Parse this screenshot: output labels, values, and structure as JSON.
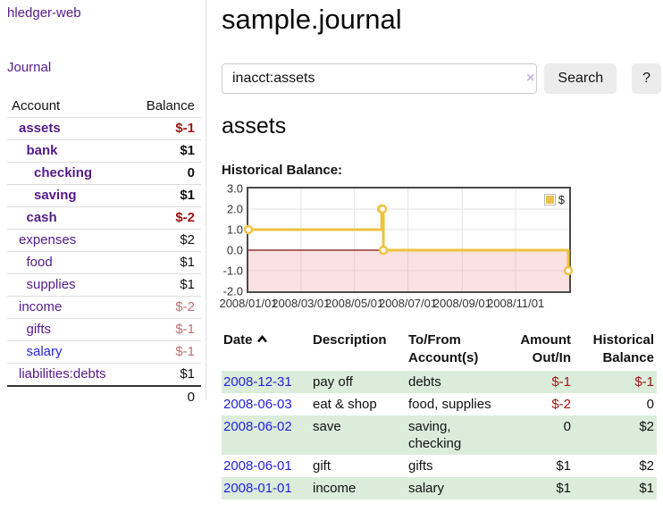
{
  "app": {
    "brand": "hledger-web",
    "journal_link": "Journal"
  },
  "sidebar": {
    "header": {
      "account": "Account",
      "balance": "Balance"
    },
    "accounts": [
      {
        "name": "assets",
        "indent": 0,
        "balance": "$-1",
        "bold": true,
        "bal_class": "neg-strong"
      },
      {
        "name": "bank",
        "indent": 1,
        "balance": "$1",
        "bold": true,
        "bal_class": "pos-strong"
      },
      {
        "name": "checking",
        "indent": 2,
        "balance": "0",
        "bold": true,
        "bal_class": "pos-strong"
      },
      {
        "name": "saving",
        "indent": 2,
        "balance": "$1",
        "bold": true,
        "bal_class": "pos-strong"
      },
      {
        "name": "cash",
        "indent": 1,
        "balance": "$-2",
        "bold": true,
        "bal_class": "neg-strong"
      },
      {
        "name": "expenses",
        "indent": 0,
        "balance": "$2",
        "bold": false,
        "bal_class": "pos"
      },
      {
        "name": "food",
        "indent": 1,
        "balance": "$1",
        "bold": false,
        "bal_class": "pos"
      },
      {
        "name": "supplies",
        "indent": 1,
        "balance": "$1",
        "bold": false,
        "bal_class": "pos"
      },
      {
        "name": "income",
        "indent": 0,
        "balance": "$-2",
        "bold": false,
        "bal_class": "neg"
      },
      {
        "name": "gifts",
        "indent": 1,
        "balance": "$-1",
        "bold": false,
        "bal_class": "neg"
      },
      {
        "name": "salary",
        "indent": 1,
        "balance": "$-1",
        "bold": false,
        "bal_class": "neg",
        "link_class": "blue"
      },
      {
        "name": "liabilities:debts",
        "indent": 0,
        "balance": "$1",
        "bold": false,
        "bal_class": "pos"
      }
    ],
    "total": "0"
  },
  "header": {
    "title": "sample.journal"
  },
  "search": {
    "query": "inacct:assets",
    "clear_icon": "×",
    "button_label": "Search",
    "help_label": "?"
  },
  "register": {
    "account_heading": "assets",
    "chart_title": "Historical Balance:",
    "table": {
      "headers": [
        {
          "label": "Date",
          "sortable": true
        },
        {
          "label": "Description"
        },
        {
          "label": "To/From Account(s)"
        },
        {
          "label": "Amount Out/In",
          "align": "right"
        },
        {
          "label": "Historical Balance",
          "align": "right"
        }
      ],
      "rows": [
        {
          "date": "2008-12-31",
          "description": "pay off",
          "accounts": "debts",
          "amount": "$-1",
          "amount_neg": true,
          "balance": "$-1",
          "balance_neg": true
        },
        {
          "date": "2008-06-03",
          "description": "eat & shop",
          "accounts": "food, supplies",
          "amount": "$-2",
          "amount_neg": true,
          "balance": "0",
          "balance_neg": false
        },
        {
          "date": "2008-06-02",
          "description": "save",
          "accounts": "saving, checking",
          "amount": "0",
          "amount_neg": false,
          "balance": "$2",
          "balance_neg": false
        },
        {
          "date": "2008-06-01",
          "description": "gift",
          "accounts": "gifts",
          "amount": "$1",
          "amount_neg": false,
          "balance": "$2",
          "balance_neg": false
        },
        {
          "date": "2008-01-01",
          "description": "income",
          "accounts": "salary",
          "amount": "$1",
          "amount_neg": false,
          "balance": "$1",
          "balance_neg": false
        }
      ]
    }
  },
  "chart_data": {
    "type": "line",
    "step": true,
    "title": "Historical Balance:",
    "legend": "$",
    "legend_position": "top-right",
    "series": [
      {
        "name": "$",
        "color": "#edc240",
        "points": [
          {
            "date": "2008-01-01",
            "value": 1
          },
          {
            "date": "2008-06-01",
            "value": 2
          },
          {
            "date": "2008-06-02",
            "value": 2
          },
          {
            "date": "2008-06-03",
            "value": 0
          },
          {
            "date": "2008-12-31",
            "value": -1
          }
        ]
      }
    ],
    "x_range": [
      "2008-01-01",
      "2009-01-01"
    ],
    "x_ticks": [
      "2008/01/01",
      "2008/03/01",
      "2008/05/01",
      "2008/07/01",
      "2008/09/01",
      "2008/11/01"
    ],
    "y_ticks": [
      "3.0",
      "2.0",
      "1.0",
      "0.0",
      "-1.0",
      "-2.0"
    ],
    "ylim": [
      -2,
      3
    ],
    "grid": true,
    "negative_region_color": "#f9dcdc",
    "zero_line_color": "#7c1212"
  }
}
